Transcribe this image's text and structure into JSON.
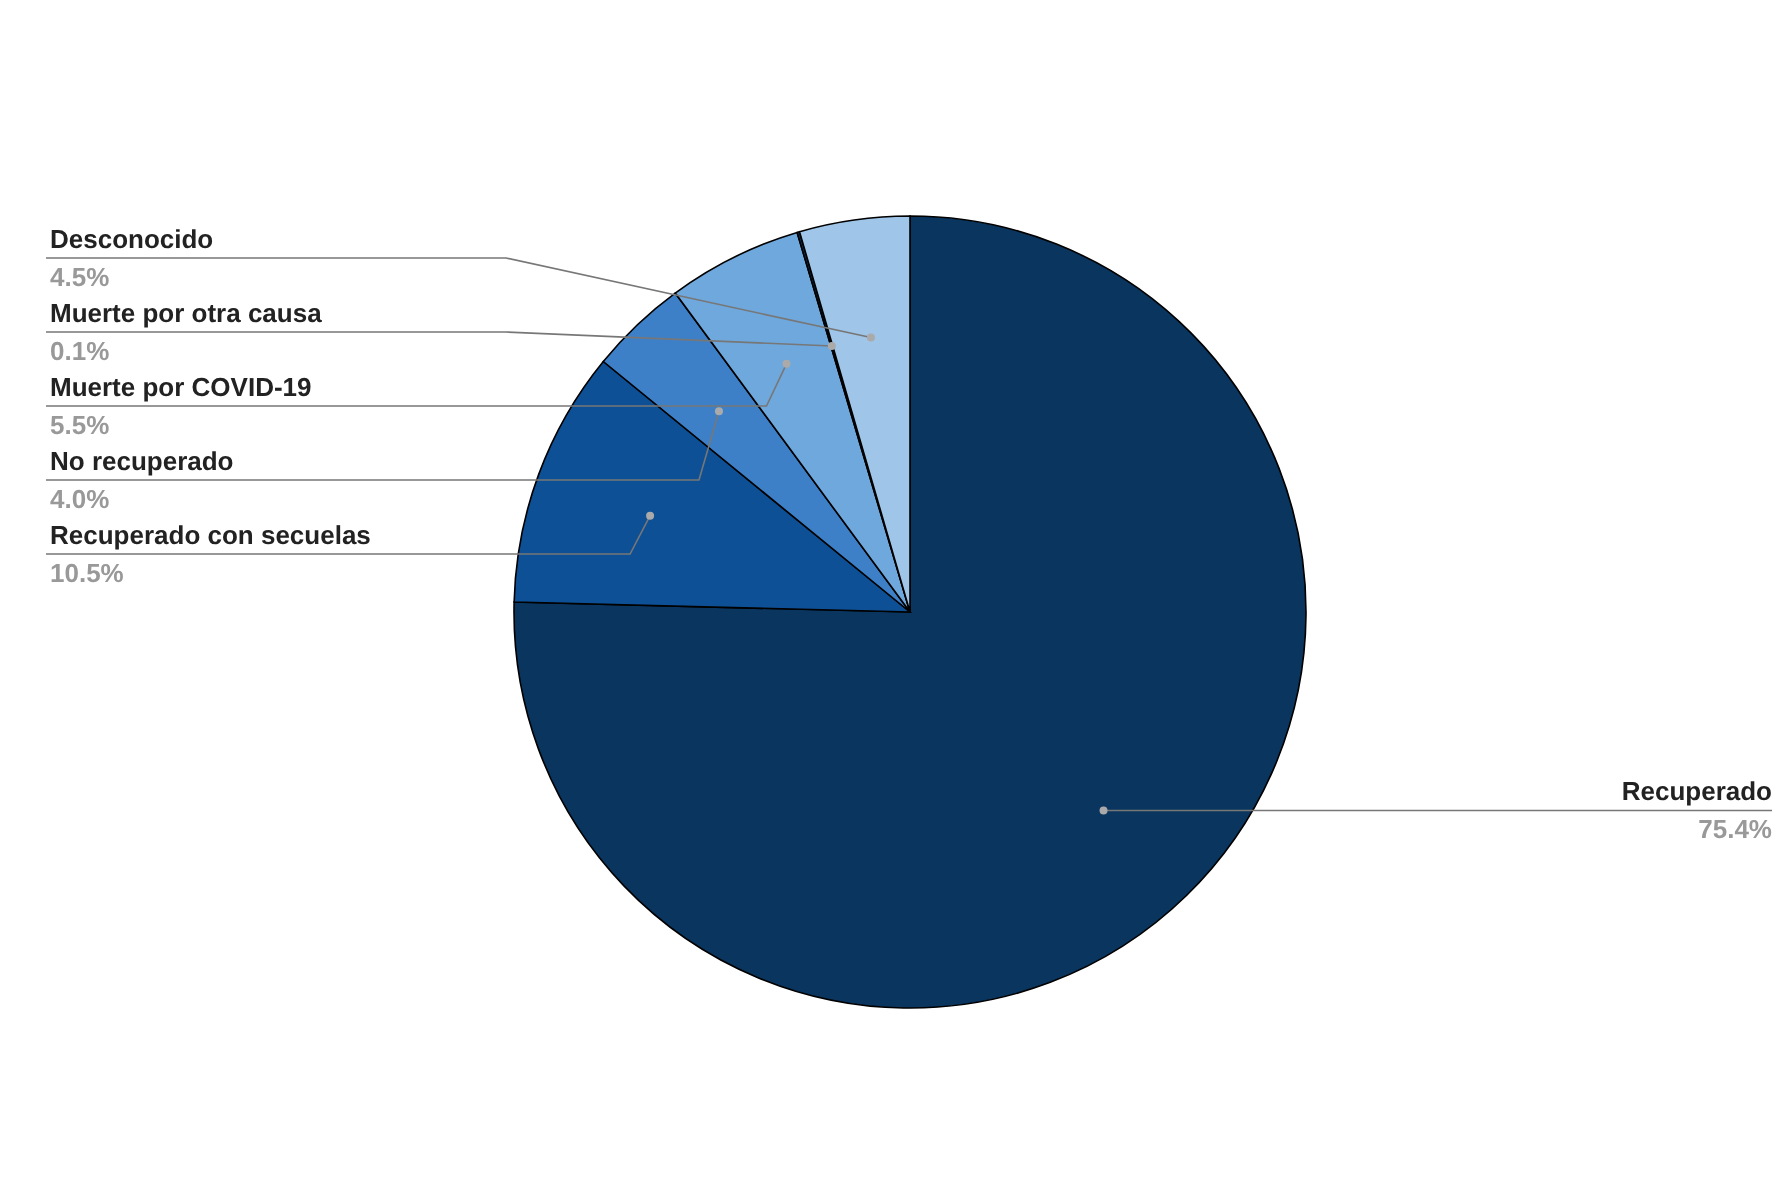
{
  "chart_data": {
    "type": "pie",
    "categories": [
      "Recuperado",
      "Recuperado con secuelas",
      "No recuperado",
      "Muerte por COVID-19",
      "Muerte por otra causa",
      "Desconocido"
    ],
    "values": [
      75.4,
      10.5,
      4.0,
      5.5,
      0.1,
      4.5
    ],
    "value_labels": [
      "75.4%",
      "10.5%",
      "4.0%",
      "5.5%",
      "0.1%",
      "4.5%"
    ],
    "colors": [
      "#0a355f",
      "#0e5095",
      "#3d80c8",
      "#6fa8dc",
      "#0a355f",
      "#9fc5e8"
    ]
  }
}
